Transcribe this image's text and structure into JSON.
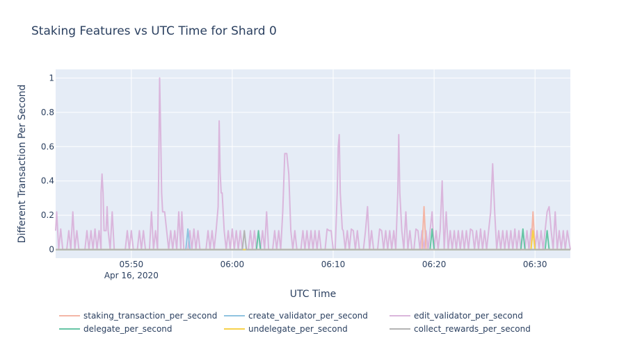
{
  "chart_data": {
    "type": "line",
    "title": "Staking Features vs UTC Time for Shard 0",
    "xlabel": "UTC Time",
    "ylabel": "Different Transaction Per Second",
    "x_range_minutes": [
      -7.5,
      43.5
    ],
    "x_origin_label": "05:50",
    "ylim": [
      -0.05,
      1.05
    ],
    "x_ticks": [
      {
        "label": "05:50",
        "sublabel": "Apr 16, 2020",
        "minute": 0
      },
      {
        "label": "06:00",
        "sublabel": "",
        "minute": 10
      },
      {
        "label": "06:10",
        "sublabel": "",
        "minute": 20
      },
      {
        "label": "06:20",
        "sublabel": "",
        "minute": 30
      },
      {
        "label": "06:30",
        "sublabel": "",
        "minute": 40
      }
    ],
    "y_ticks": [
      {
        "label": "0",
        "value": 0
      },
      {
        "label": "0.2",
        "value": 0.2
      },
      {
        "label": "0.4",
        "value": 0.4
      },
      {
        "label": "0.6",
        "value": 0.6
      },
      {
        "label": "0.8",
        "value": 0.8
      },
      {
        "label": "1",
        "value": 1
      }
    ],
    "grid": true,
    "legend_position": "bottom",
    "colors": {
      "background": "#e5ecf6",
      "grid": "#ffffff"
    },
    "series": [
      {
        "name": "edit_validator_per_second",
        "color": "#dab6dc",
        "points": [
          [
            -7.5,
            0.11
          ],
          [
            -7.4,
            0.22
          ],
          [
            -7.2,
            0
          ],
          [
            -7.0,
            0.12
          ],
          [
            -6.8,
            0
          ],
          [
            -6.4,
            0
          ],
          [
            -6.2,
            0.11
          ],
          [
            -6.0,
            0
          ],
          [
            -5.8,
            0.22
          ],
          [
            -5.6,
            0
          ],
          [
            -5.4,
            0.11
          ],
          [
            -5.2,
            0
          ],
          [
            -4.6,
            0
          ],
          [
            -4.4,
            0.11
          ],
          [
            -4.2,
            0
          ],
          [
            -4.0,
            0.11
          ],
          [
            -3.8,
            0
          ],
          [
            -3.6,
            0.12
          ],
          [
            -3.4,
            0
          ],
          [
            -3.2,
            0.11
          ],
          [
            -3.0,
            0
          ],
          [
            -3.0,
            0.33
          ],
          [
            -2.9,
            0.44
          ],
          [
            -2.8,
            0.33
          ],
          [
            -2.7,
            0.11
          ],
          [
            -2.5,
            0.11
          ],
          [
            -2.4,
            0.25
          ],
          [
            -2.3,
            0.11
          ],
          [
            -2.1,
            0
          ],
          [
            -1.9,
            0.22
          ],
          [
            -1.7,
            0
          ],
          [
            -0.6,
            0
          ],
          [
            -0.4,
            0.11
          ],
          [
            -0.2,
            0
          ],
          [
            0,
            0.11
          ],
          [
            0.2,
            0
          ],
          [
            0.6,
            0
          ],
          [
            0.8,
            0.11
          ],
          [
            1.0,
            0
          ],
          [
            1.2,
            0.11
          ],
          [
            1.4,
            0
          ],
          [
            1.8,
            0
          ],
          [
            2.0,
            0.22
          ],
          [
            2.2,
            0
          ],
          [
            2.4,
            0.11
          ],
          [
            2.6,
            0
          ],
          [
            2.7,
            0.4
          ],
          [
            2.8,
            1.0
          ],
          [
            2.9,
            0.7
          ],
          [
            3.0,
            0.33
          ],
          [
            3.1,
            0.22
          ],
          [
            3.3,
            0.22
          ],
          [
            3.5,
            0.11
          ],
          [
            3.7,
            0
          ],
          [
            3.9,
            0.11
          ],
          [
            4.1,
            0
          ],
          [
            4.3,
            0.11
          ],
          [
            4.5,
            0
          ],
          [
            4.7,
            0.22
          ],
          [
            4.9,
            0
          ],
          [
            5.0,
            0.22
          ],
          [
            5.2,
            0
          ],
          [
            5.6,
            0
          ],
          [
            5.8,
            0.11
          ],
          [
            6.0,
            0
          ],
          [
            6.2,
            0.12
          ],
          [
            6.4,
            0
          ],
          [
            6.6,
            0.11
          ],
          [
            6.8,
            0
          ],
          [
            7.4,
            0
          ],
          [
            7.6,
            0.11
          ],
          [
            7.8,
            0
          ],
          [
            8.0,
            0.11
          ],
          [
            8.2,
            0
          ],
          [
            8.4,
            0.11
          ],
          [
            8.6,
            0.25
          ],
          [
            8.7,
            0.75
          ],
          [
            8.8,
            0.45
          ],
          [
            8.9,
            0.33
          ],
          [
            9.0,
            0.33
          ],
          [
            9.2,
            0.11
          ],
          [
            9.4,
            0
          ],
          [
            9.6,
            0.11
          ],
          [
            9.8,
            0
          ],
          [
            10.0,
            0.12
          ],
          [
            10.2,
            0
          ],
          [
            10.4,
            0.11
          ],
          [
            10.6,
            0
          ],
          [
            10.8,
            0.11
          ],
          [
            11.0,
            0
          ],
          [
            11.6,
            0
          ],
          [
            11.8,
            0.11
          ],
          [
            12.0,
            0
          ],
          [
            12.2,
            0.11
          ],
          [
            12.4,
            0
          ],
          [
            12.6,
            0.11
          ],
          [
            12.8,
            0
          ],
          [
            13.0,
            0.11
          ],
          [
            13.2,
            0
          ],
          [
            13.4,
            0.22
          ],
          [
            13.6,
            0
          ],
          [
            14.0,
            0
          ],
          [
            14.2,
            0.11
          ],
          [
            14.4,
            0
          ],
          [
            14.6,
            0.11
          ],
          [
            14.8,
            0
          ],
          [
            15.0,
            0.22
          ],
          [
            15.2,
            0.56
          ],
          [
            15.4,
            0.56
          ],
          [
            15.6,
            0.44
          ],
          [
            15.8,
            0.11
          ],
          [
            16.0,
            0
          ],
          [
            16.2,
            0.11
          ],
          [
            16.4,
            0
          ],
          [
            16.8,
            0
          ],
          [
            17.0,
            0.11
          ],
          [
            17.2,
            0
          ],
          [
            17.4,
            0.11
          ],
          [
            17.6,
            0
          ],
          [
            17.8,
            0.11
          ],
          [
            18.0,
            0
          ],
          [
            18.2,
            0.11
          ],
          [
            18.4,
            0
          ],
          [
            18.6,
            0.11
          ],
          [
            18.8,
            0
          ],
          [
            19.2,
            0
          ],
          [
            19.4,
            0.12
          ],
          [
            19.6,
            0.11
          ],
          [
            19.8,
            0.11
          ],
          [
            20.0,
            0
          ],
          [
            20.2,
            0
          ],
          [
            20.4,
            0.33
          ],
          [
            20.5,
            0.6
          ],
          [
            20.6,
            0.67
          ],
          [
            20.7,
            0.33
          ],
          [
            20.9,
            0.12
          ],
          [
            21.0,
            0.11
          ],
          [
            21.2,
            0
          ],
          [
            21.4,
            0.11
          ],
          [
            21.6,
            0
          ],
          [
            21.8,
            0.12
          ],
          [
            22.0,
            0.11
          ],
          [
            22.2,
            0
          ],
          [
            22.4,
            0.11
          ],
          [
            22.6,
            0
          ],
          [
            23.0,
            0
          ],
          [
            23.2,
            0.11
          ],
          [
            23.4,
            0.25
          ],
          [
            23.6,
            0
          ],
          [
            23.8,
            0.11
          ],
          [
            24.0,
            0
          ],
          [
            24.4,
            0
          ],
          [
            24.6,
            0.12
          ],
          [
            24.8,
            0.11
          ],
          [
            25.0,
            0
          ],
          [
            25.2,
            0.11
          ],
          [
            25.4,
            0
          ],
          [
            25.6,
            0.11
          ],
          [
            25.8,
            0
          ],
          [
            26.0,
            0.11
          ],
          [
            26.2,
            0
          ],
          [
            26.4,
            0.33
          ],
          [
            26.5,
            0.67
          ],
          [
            26.6,
            0.33
          ],
          [
            26.8,
            0.11
          ],
          [
            27.0,
            0
          ],
          [
            27.2,
            0.22
          ],
          [
            27.4,
            0
          ],
          [
            27.6,
            0.11
          ],
          [
            27.8,
            0
          ],
          [
            28.0,
            0
          ],
          [
            28.2,
            0.12
          ],
          [
            28.4,
            0.11
          ],
          [
            28.6,
            0
          ],
          [
            28.8,
            0.11
          ],
          [
            29.0,
            0
          ],
          [
            29.2,
            0.11
          ],
          [
            29.4,
            0
          ],
          [
            29.6,
            0.11
          ],
          [
            29.8,
            0.22
          ],
          [
            30.0,
            0
          ],
          [
            30.2,
            0.11
          ],
          [
            30.4,
            0
          ],
          [
            30.6,
            0.11
          ],
          [
            30.8,
            0.4
          ],
          [
            31.0,
            0
          ],
          [
            31.2,
            0.22
          ],
          [
            31.4,
            0
          ],
          [
            31.6,
            0.11
          ],
          [
            31.8,
            0
          ],
          [
            32.0,
            0.11
          ],
          [
            32.2,
            0
          ],
          [
            32.4,
            0.11
          ],
          [
            32.6,
            0
          ],
          [
            32.8,
            0.11
          ],
          [
            33.0,
            0
          ],
          [
            33.2,
            0.11
          ],
          [
            33.4,
            0
          ],
          [
            33.6,
            0.12
          ],
          [
            33.8,
            0.11
          ],
          [
            34.0,
            0
          ],
          [
            34.2,
            0.11
          ],
          [
            34.4,
            0
          ],
          [
            34.6,
            0.12
          ],
          [
            34.8,
            0
          ],
          [
            35.0,
            0.11
          ],
          [
            35.2,
            0
          ],
          [
            35.6,
            0.22
          ],
          [
            35.8,
            0.5
          ],
          [
            36.0,
            0.22
          ],
          [
            36.2,
            0
          ],
          [
            36.4,
            0.11
          ],
          [
            36.6,
            0
          ],
          [
            36.8,
            0.11
          ],
          [
            37.0,
            0
          ],
          [
            37.2,
            0.11
          ],
          [
            37.4,
            0
          ],
          [
            37.6,
            0.11
          ],
          [
            37.8,
            0
          ],
          [
            38.0,
            0.12
          ],
          [
            38.2,
            0
          ],
          [
            38.4,
            0.11
          ],
          [
            38.6,
            0
          ],
          [
            38.8,
            0.11
          ],
          [
            39.0,
            0
          ],
          [
            39.2,
            0.11
          ],
          [
            39.4,
            0
          ],
          [
            39.6,
            0.12
          ],
          [
            39.8,
            0.11
          ],
          [
            40.0,
            0
          ],
          [
            40.2,
            0.11
          ],
          [
            40.4,
            0
          ],
          [
            40.6,
            0.11
          ],
          [
            40.8,
            0
          ],
          [
            41.0,
            0.11
          ],
          [
            41.2,
            0.22
          ],
          [
            41.4,
            0.25
          ],
          [
            41.6,
            0.11
          ],
          [
            41.8,
            0
          ],
          [
            42.0,
            0.22
          ],
          [
            42.2,
            0
          ],
          [
            42.4,
            0.11
          ],
          [
            42.6,
            0
          ],
          [
            42.8,
            0.11
          ],
          [
            43.0,
            0
          ],
          [
            43.2,
            0.11
          ],
          [
            43.5,
            0
          ]
        ]
      },
      {
        "name": "staking_transaction_per_second",
        "color": "#f4b6a6",
        "points": [
          [
            -7.5,
            0
          ],
          [
            28.8,
            0
          ],
          [
            29.0,
            0.25
          ],
          [
            29.2,
            0
          ],
          [
            39.6,
            0
          ],
          [
            39.8,
            0.22
          ],
          [
            40.0,
            0
          ],
          [
            43.5,
            0
          ]
        ]
      },
      {
        "name": "create_validator_per_second",
        "color": "#8fc3e0",
        "points": [
          [
            -7.5,
            0
          ],
          [
            5.4,
            0
          ],
          [
            5.6,
            0.12
          ],
          [
            5.8,
            0
          ],
          [
            43.5,
            0
          ]
        ]
      },
      {
        "name": "delegate_per_second",
        "color": "#66c5a5",
        "points": [
          [
            -7.5,
            0
          ],
          [
            12.4,
            0
          ],
          [
            12.6,
            0.11
          ],
          [
            12.8,
            0
          ],
          [
            29.6,
            0
          ],
          [
            29.8,
            0.12
          ],
          [
            30.0,
            0
          ],
          [
            38.6,
            0
          ],
          [
            38.8,
            0.12
          ],
          [
            39.0,
            0
          ],
          [
            41.0,
            0
          ],
          [
            41.2,
            0.11
          ],
          [
            41.4,
            0
          ],
          [
            43.5,
            0
          ]
        ]
      },
      {
        "name": "undelegate_per_second",
        "color": "#f6d14b",
        "points": [
          [
            -7.5,
            0
          ],
          [
            39.6,
            0
          ],
          [
            39.8,
            0.11
          ],
          [
            40.0,
            0
          ],
          [
            43.5,
            0
          ]
        ]
      },
      {
        "name": "collect_rewards_per_second",
        "color": "#b3b3b3",
        "points": [
          [
            -7.5,
            0
          ],
          [
            11.0,
            0
          ],
          [
            11.2,
            0.11
          ],
          [
            11.4,
            0
          ],
          [
            43.5,
            0
          ]
        ]
      }
    ]
  }
}
